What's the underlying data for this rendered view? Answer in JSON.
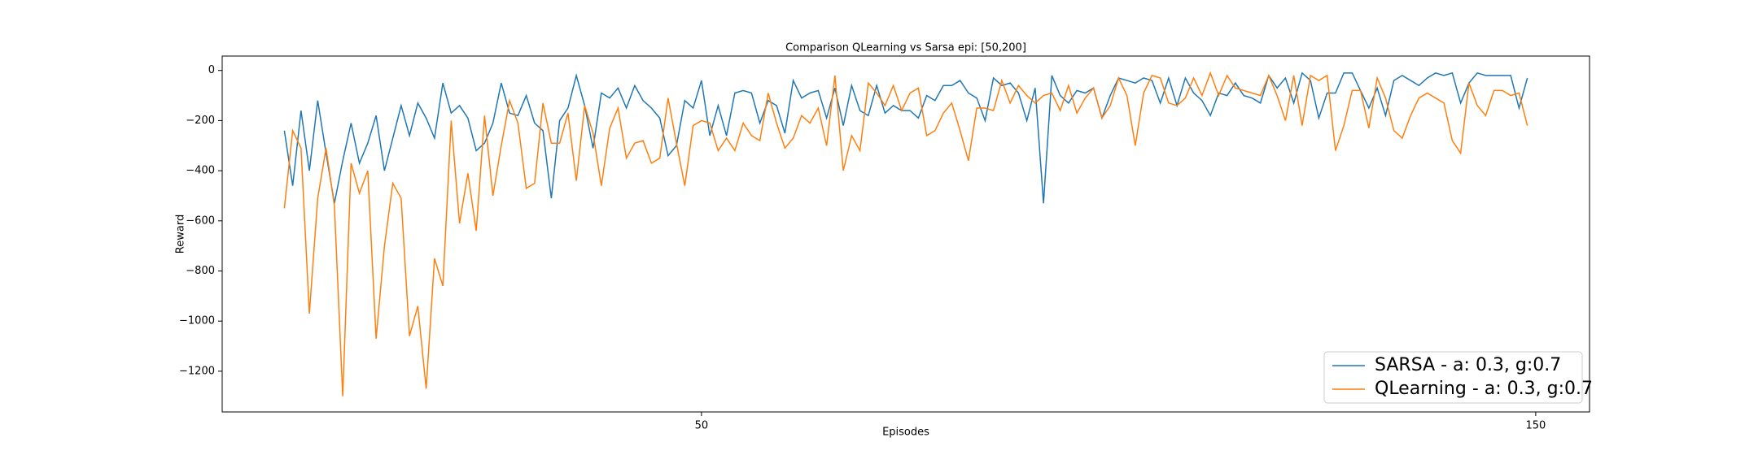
{
  "chart_data": {
    "type": "line",
    "title": "Comparison QLearning vs Sarsa epi: [50,200]",
    "x_label": "Episodes",
    "y_label": "Reward",
    "legend": "lower right",
    "grid": false,
    "xlim": [
      -7.45,
      156.45
    ],
    "xticks": [
      50,
      150
    ],
    "ylim": [
      -1362.5,
      57.5
    ],
    "yticks": [
      {
        "value": -1200,
        "label": "−1200"
      },
      {
        "value": -1000,
        "label": "−1000"
      },
      {
        "value": -800,
        "label": "−800"
      },
      {
        "value": -600,
        "label": "−600"
      },
      {
        "value": -400,
        "label": "−400"
      },
      {
        "value": -200,
        "label": "−200"
      },
      0
    ],
    "x": [
      0,
      1,
      2,
      3,
      4,
      5,
      6,
      7,
      8,
      9,
      10,
      11,
      12,
      13,
      14,
      15,
      16,
      17,
      18,
      19,
      20,
      21,
      22,
      23,
      24,
      25,
      26,
      27,
      28,
      29,
      30,
      31,
      32,
      33,
      34,
      35,
      36,
      37,
      38,
      39,
      40,
      41,
      42,
      43,
      44,
      45,
      46,
      47,
      48,
      49,
      50,
      51,
      52,
      53,
      54,
      55,
      56,
      57,
      58,
      59,
      60,
      61,
      62,
      63,
      64,
      65,
      66,
      67,
      68,
      69,
      70,
      71,
      72,
      73,
      74,
      75,
      76,
      77,
      78,
      79,
      80,
      81,
      82,
      83,
      84,
      85,
      86,
      87,
      88,
      89,
      90,
      91,
      92,
      93,
      94,
      95,
      96,
      97,
      98,
      99,
      100,
      101,
      102,
      103,
      104,
      105,
      106,
      107,
      108,
      109,
      110,
      111,
      112,
      113,
      114,
      115,
      116,
      117,
      118,
      119,
      120,
      121,
      122,
      123,
      124,
      125,
      126,
      127,
      128,
      129,
      130,
      131,
      132,
      133,
      134,
      135,
      136,
      137,
      138,
      139,
      140,
      141,
      142,
      143,
      144,
      145,
      146,
      147,
      148,
      149
    ],
    "series": [
      {
        "name": "SARSA - a: 0.3, g:0.7",
        "color": "#1f77b4",
        "values": [
          -240,
          -460,
          -160,
          -400,
          -120,
          -330,
          -530,
          -360,
          -210,
          -370,
          -290,
          -180,
          -400,
          -270,
          -140,
          -260,
          -130,
          -190,
          -270,
          -50,
          -170,
          -140,
          -190,
          -320,
          -290,
          -210,
          -50,
          -170,
          -180,
          -100,
          -210,
          -240,
          -510,
          -200,
          -150,
          -20,
          -140,
          -310,
          -90,
          -110,
          -70,
          -150,
          -60,
          -120,
          -150,
          -190,
          -340,
          -300,
          -120,
          -150,
          -40,
          -260,
          -140,
          -260,
          -90,
          -80,
          -90,
          -210,
          -120,
          -140,
          -250,
          -40,
          -110,
          -90,
          -80,
          -190,
          -70,
          -220,
          -60,
          -160,
          -180,
          -60,
          -170,
          -140,
          -160,
          -160,
          -190,
          -100,
          -120,
          -60,
          -60,
          -40,
          -90,
          -110,
          -200,
          -30,
          -60,
          -50,
          -90,
          -200,
          -70,
          -530,
          -20,
          -100,
          -130,
          -80,
          -90,
          -70,
          -190,
          -100,
          -30,
          -40,
          -50,
          -30,
          -40,
          -130,
          -30,
          -140,
          -30,
          -90,
          -120,
          -180,
          -90,
          -100,
          -50,
          -100,
          -110,
          -130,
          -20,
          -70,
          -30,
          -130,
          -10,
          -40,
          -190,
          -90,
          -90,
          -10,
          -10,
          -80,
          -150,
          -70,
          -180,
          -40,
          -20,
          -40,
          -60,
          -30,
          -10,
          -20,
          -10,
          -130,
          -50,
          -10,
          -20,
          -20,
          -20,
          -20,
          -150,
          -30
        ]
      },
      {
        "name": "QLearning - a: 0.3, g:0.7",
        "color": "#ff7f0e",
        "values": [
          -550,
          -240,
          -310,
          -970,
          -510,
          -310,
          -540,
          -1300,
          -370,
          -490,
          -400,
          -1070,
          -700,
          -450,
          -510,
          -1060,
          -940,
          -1270,
          -750,
          -860,
          -200,
          -610,
          -410,
          -640,
          -180,
          -500,
          -300,
          -120,
          -210,
          -470,
          -450,
          -130,
          -290,
          -290,
          -170,
          -440,
          -140,
          -250,
          -460,
          -230,
          -150,
          -350,
          -290,
          -280,
          -370,
          -350,
          -110,
          -290,
          -460,
          -220,
          -200,
          -210,
          -320,
          -270,
          -320,
          -210,
          -260,
          -280,
          -90,
          -210,
          -310,
          -270,
          -180,
          -210,
          -150,
          -300,
          -20,
          -400,
          -260,
          -320,
          -50,
          -90,
          -140,
          -60,
          -160,
          -90,
          -70,
          -260,
          -240,
          -170,
          -130,
          -240,
          -360,
          -150,
          -150,
          -160,
          -40,
          -130,
          -60,
          -100,
          -130,
          -100,
          -90,
          -160,
          -60,
          -170,
          -110,
          -70,
          -190,
          -140,
          -30,
          -100,
          -300,
          -90,
          -20,
          -30,
          -130,
          -140,
          -110,
          -30,
          -100,
          -10,
          -100,
          -20,
          -70,
          -80,
          -90,
          -100,
          -20,
          -100,
          -200,
          -20,
          -220,
          -20,
          -40,
          -20,
          -320,
          -220,
          -80,
          -80,
          -230,
          -30,
          -110,
          -240,
          -270,
          -180,
          -110,
          -90,
          -110,
          -130,
          -280,
          -330,
          -50,
          -140,
          -180,
          -80,
          -80,
          -100,
          -90,
          -220
        ]
      }
    ]
  }
}
